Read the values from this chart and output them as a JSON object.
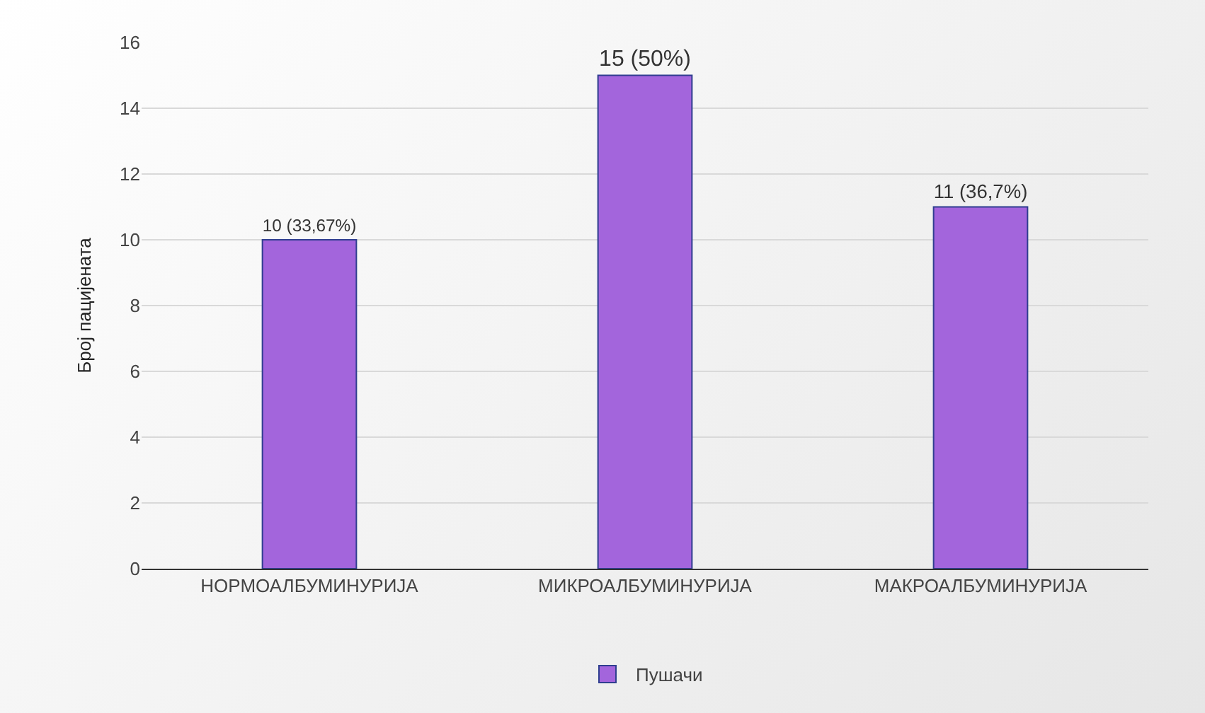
{
  "chart_data": {
    "type": "bar",
    "ylabel": "Број пацијената",
    "categories": [
      "НОРМОАЛБУМИНУРИЈА",
      "МИКРОАЛБУМИНУРИЈА",
      "МАКРОАЛБУМИНУРИЈА"
    ],
    "series": [
      {
        "name": "Пушачи",
        "color": "#a365dc",
        "values": [
          10,
          15,
          11
        ],
        "value_labels": [
          "10 (33,67%)",
          "15 (50%)",
          "11 (36,7%)"
        ]
      }
    ],
    "ylim": [
      0,
      16
    ],
    "yticks": [
      0,
      2,
      4,
      6,
      8,
      10,
      12,
      14,
      16
    ],
    "grid": "y",
    "legend": "bottom"
  }
}
